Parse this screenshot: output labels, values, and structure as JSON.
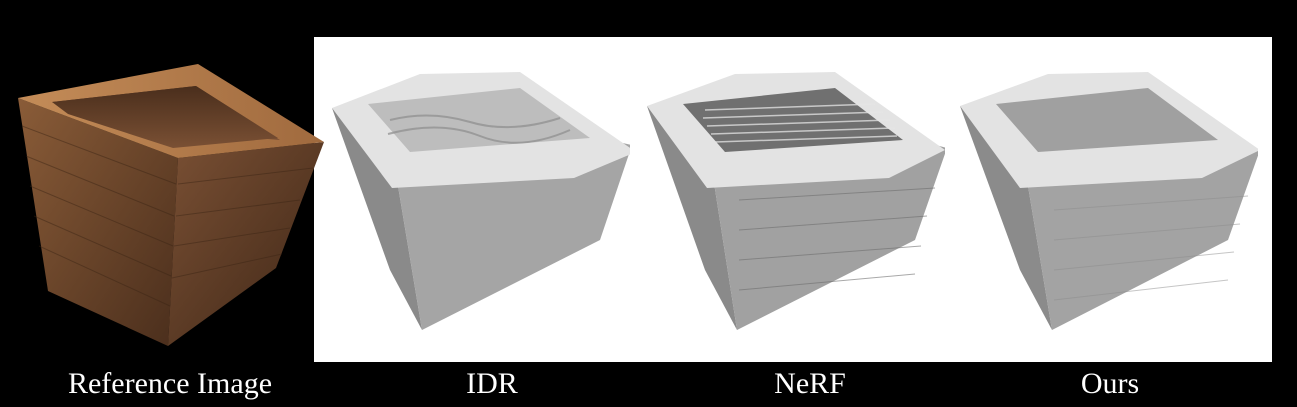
{
  "captions": {
    "reference": "Reference Image",
    "idr": "IDR",
    "nerf": "NeRF",
    "ours": "Ours"
  },
  "colors": {
    "background": "#000000",
    "panel": "#ffffff",
    "wood_light": "#b07a4a",
    "wood_dark": "#5a3a24",
    "mesh_light": "#e6e6e6",
    "mesh_mid": "#9a9a9a",
    "mesh_dark": "#6e6e6e"
  }
}
